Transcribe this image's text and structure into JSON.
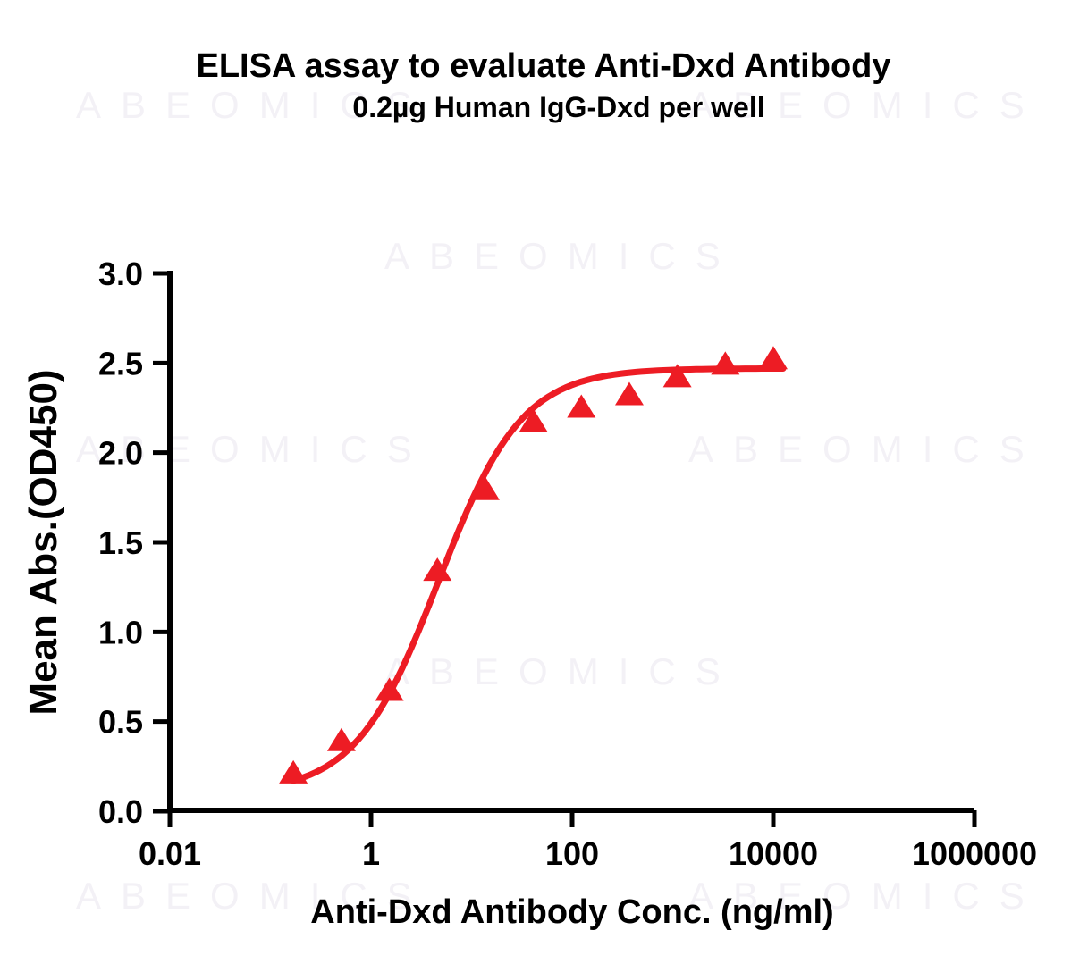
{
  "header": {
    "title": "ELISA assay to evaluate Anti-Dxd Antibody",
    "subtitle": "0.2µg Human IgG-Dxd per well"
  },
  "watermark": {
    "text": "ABEOMICS",
    "color": "#f3f1f6"
  },
  "colors": {
    "series_red": "#ED1C24",
    "axis_black": "#000000",
    "background": "#ffffff"
  },
  "chart_data": {
    "type": "scatter",
    "title": "ELISA assay to evaluate Anti-Dxd Antibody",
    "subtitle": "0.2µg Human IgG-Dxd per well",
    "xlabel": "Anti-Dxd Antibody Conc. (ng/ml)",
    "ylabel": "Mean Abs.(OD450)",
    "x_scale": "log10",
    "xlim": [
      0.01,
      1000000
    ],
    "ylim": [
      0.0,
      3.0
    ],
    "grid": false,
    "legend": "none",
    "x_ticks": [
      {
        "value": 0.01,
        "label": "0.01"
      },
      {
        "value": 1,
        "label": "1"
      },
      {
        "value": 100,
        "label": "100"
      },
      {
        "value": 10000,
        "label": "10000"
      },
      {
        "value": 1000000,
        "label": "1000000"
      }
    ],
    "y_ticks": [
      {
        "value": 0.0,
        "label": "0.0"
      },
      {
        "value": 0.5,
        "label": "0.5"
      },
      {
        "value": 1.0,
        "label": "1.0"
      },
      {
        "value": 1.5,
        "label": "1.5"
      },
      {
        "value": 2.0,
        "label": "2.0"
      },
      {
        "value": 2.5,
        "label": "2.5"
      },
      {
        "value": 3.0,
        "label": "3.0"
      }
    ],
    "series": [
      {
        "name": "Anti-Dxd Antibody",
        "marker": "triangle-up",
        "color": "#ED1C24",
        "points": [
          {
            "x": 0.169,
            "y": 0.21
          },
          {
            "x": 0.508,
            "y": 0.39
          },
          {
            "x": 1.524,
            "y": 0.67
          },
          {
            "x": 4.572,
            "y": 1.34
          },
          {
            "x": 13.717,
            "y": 1.79
          },
          {
            "x": 41.152,
            "y": 2.17
          },
          {
            "x": 123.457,
            "y": 2.25
          },
          {
            "x": 370.37,
            "y": 2.32
          },
          {
            "x": 1111.11,
            "y": 2.42
          },
          {
            "x": 3333.33,
            "y": 2.49
          },
          {
            "x": 10000,
            "y": 2.52
          }
        ]
      }
    ],
    "fit_curve": {
      "model": "4PL",
      "bottom": 0.1,
      "top": 2.47,
      "ec50": 4.7,
      "hill": 1.05,
      "x_range": [
        0.169,
        12500
      ],
      "color": "#ED1C24"
    }
  }
}
